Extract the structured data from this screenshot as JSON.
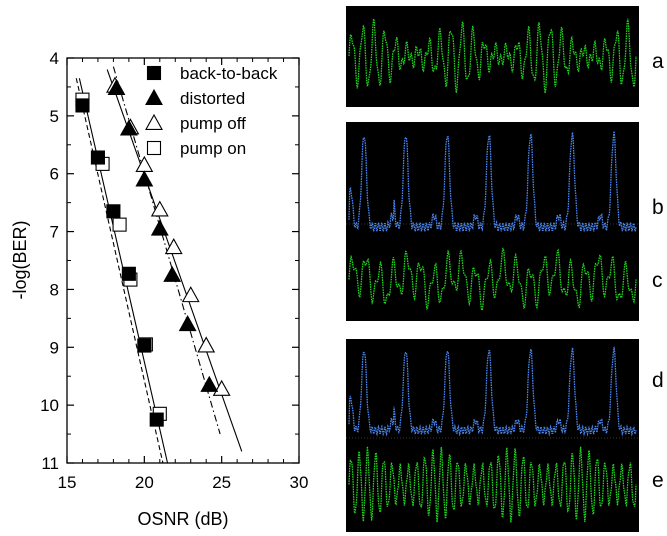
{
  "chart_data": {
    "type": "scatter",
    "xlabel": "OSNR (dB)",
    "ylabel": "-log(BER)",
    "xlim": [
      15,
      30
    ],
    "ylim": [
      4,
      11
    ],
    "y_inverted": true,
    "x_ticks": [
      "15",
      "20",
      "25",
      "30"
    ],
    "y_ticks": [
      "4",
      "5",
      "6",
      "7",
      "8",
      "9",
      "10",
      "11"
    ],
    "grid": false,
    "legend_position": "top-right",
    "series": [
      {
        "name": "back-to-back",
        "marker": "filled-square",
        "points": [
          [
            16.0,
            4.82
          ],
          [
            17.0,
            5.72
          ],
          [
            18.0,
            6.65
          ],
          [
            19.0,
            7.73
          ],
          [
            20.0,
            8.97
          ],
          [
            20.8,
            10.25
          ]
        ]
      },
      {
        "name": "distorted",
        "marker": "filled-triangle",
        "points": [
          [
            18.2,
            4.52
          ],
          [
            19.0,
            5.22
          ],
          [
            20.0,
            6.1
          ],
          [
            21.0,
            6.95
          ],
          [
            21.8,
            7.75
          ],
          [
            22.8,
            8.6
          ],
          [
            24.2,
            9.65
          ]
        ]
      },
      {
        "name": "pump off",
        "marker": "open-triangle",
        "points": [
          [
            18.1,
            4.48
          ],
          [
            19.1,
            5.2
          ],
          [
            20.0,
            5.85
          ],
          [
            21.0,
            6.62
          ],
          [
            21.9,
            7.27
          ],
          [
            23.0,
            8.1
          ],
          [
            24.0,
            8.97
          ],
          [
            25.0,
            9.72
          ]
        ]
      },
      {
        "name": "pump on",
        "marker": "open-square",
        "points": [
          [
            16.0,
            4.72
          ],
          [
            17.3,
            5.83
          ],
          [
            18.4,
            6.88
          ],
          [
            19.1,
            7.83
          ],
          [
            20.1,
            8.95
          ],
          [
            21.0,
            10.15
          ]
        ]
      }
    ],
    "fit_lines": [
      {
        "series": "back-to-back",
        "style": "solid",
        "from": [
          15.8,
          4.35
        ],
        "to": [
          21.5,
          11.0
        ]
      },
      {
        "series": "pump on",
        "style": "dashed",
        "from": [
          15.6,
          4.35
        ],
        "to": [
          21.2,
          11.0
        ]
      },
      {
        "series": "distorted",
        "style": "dash-dot",
        "from": [
          18.0,
          4.15
        ],
        "to": [
          24.9,
          10.5
        ]
      },
      {
        "series": "pump off",
        "style": "solid",
        "from": [
          17.6,
          4.2
        ],
        "to": [
          26.3,
          10.8
        ]
      }
    ]
  },
  "traces": [
    {
      "label": "a",
      "color": "#1ed61e"
    },
    {
      "label": "b",
      "color": "#4a86f0"
    },
    {
      "label": "c",
      "color": "#1ed61e"
    },
    {
      "label": "d",
      "color": "#4a86f0"
    },
    {
      "label": "e",
      "color": "#1ed61e"
    }
  ],
  "colors": {
    "scope_background": "#000000",
    "axis": "#000000",
    "marker": "#000000"
  }
}
